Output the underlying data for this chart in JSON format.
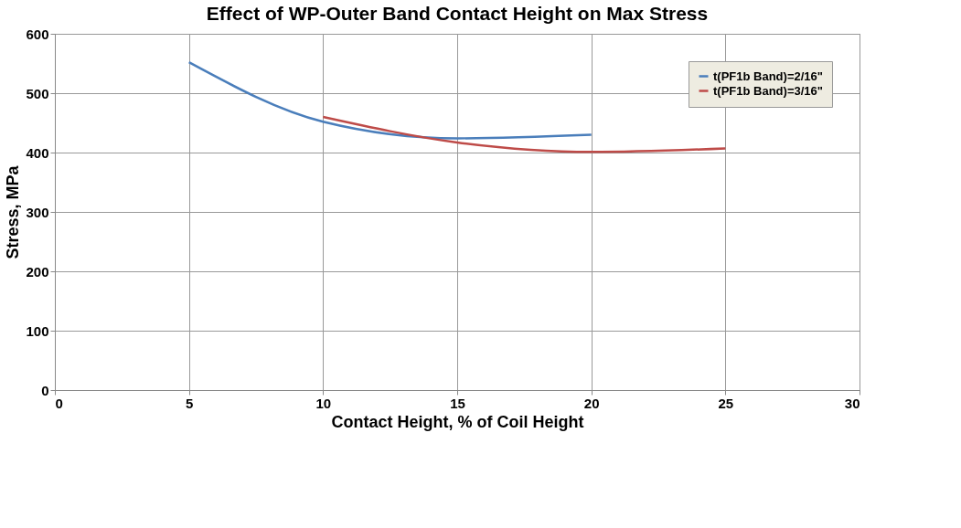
{
  "chart_data": {
    "type": "line",
    "title": "Effect of WP-Outer Band Contact Height on Max Stress",
    "xlabel": "Contact Height, % of Coil Height",
    "ylabel": "Stress, MPa",
    "series": [
      {
        "name": "t(PF1b Band)=2/16\"",
        "color": "#4a7ebb",
        "x": [
          5,
          10,
          15,
          20
        ],
        "values": [
          552,
          452,
          424,
          430
        ]
      },
      {
        "name": "t(PF1b Band)=3/16\"",
        "color": "#be4b48",
        "x": [
          10,
          15,
          20,
          25
        ],
        "values": [
          460,
          417,
          401,
          407
        ]
      }
    ],
    "xlim": [
      0,
      30
    ],
    "xticks": [
      0,
      5,
      10,
      15,
      20,
      25,
      30
    ],
    "ylim": [
      0,
      600
    ],
    "yticks": [
      0,
      100,
      200,
      300,
      400,
      500,
      600
    ],
    "grid": true,
    "legend": "top right",
    "marker": "none",
    "line_style": "solid"
  }
}
